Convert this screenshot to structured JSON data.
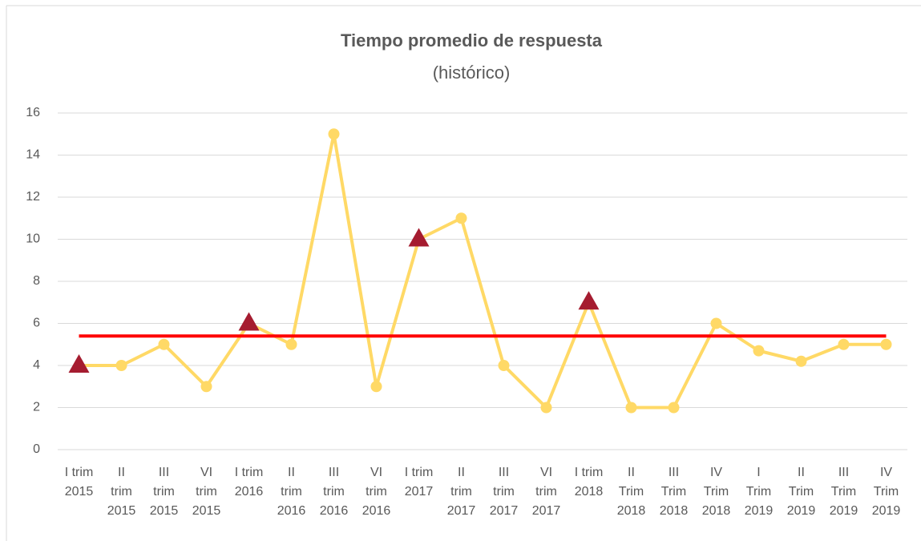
{
  "chart_data": {
    "type": "line",
    "title": "Tiempo promedio de respuesta",
    "subtitle": "(histórico)",
    "categories": [
      "I trim 2015",
      "II trim 2015",
      "III trim 2015",
      "VI trim 2015",
      "I trim 2016",
      "II trim 2016",
      "III trim 2016",
      "VI trim 2016",
      "I trim 2017",
      "II trim 2017",
      "III trim 2017",
      "VI trim 2017",
      "I trim 2018",
      "II Trim 2018",
      "III Trim 2018",
      "IV Trim 2018",
      "I Trim 2019",
      "II Trim 2019",
      "III Trim 2019",
      "IV Trim 2019"
    ],
    "values": [
      4,
      4,
      5,
      3,
      6,
      5,
      15,
      3,
      10,
      11,
      4,
      2,
      7,
      2,
      2,
      6,
      4.7,
      4.2,
      5,
      5
    ],
    "color": "#ffd966",
    "highlight": [
      0,
      4,
      8,
      12
    ],
    "highlight_color": "#a51c30",
    "average": 5.4,
    "average_color": "#ff0000",
    "ylim": [
      0,
      16
    ],
    "yticks": [
      0,
      2,
      4,
      6,
      8,
      10,
      12,
      14,
      16
    ],
    "grid": true
  }
}
